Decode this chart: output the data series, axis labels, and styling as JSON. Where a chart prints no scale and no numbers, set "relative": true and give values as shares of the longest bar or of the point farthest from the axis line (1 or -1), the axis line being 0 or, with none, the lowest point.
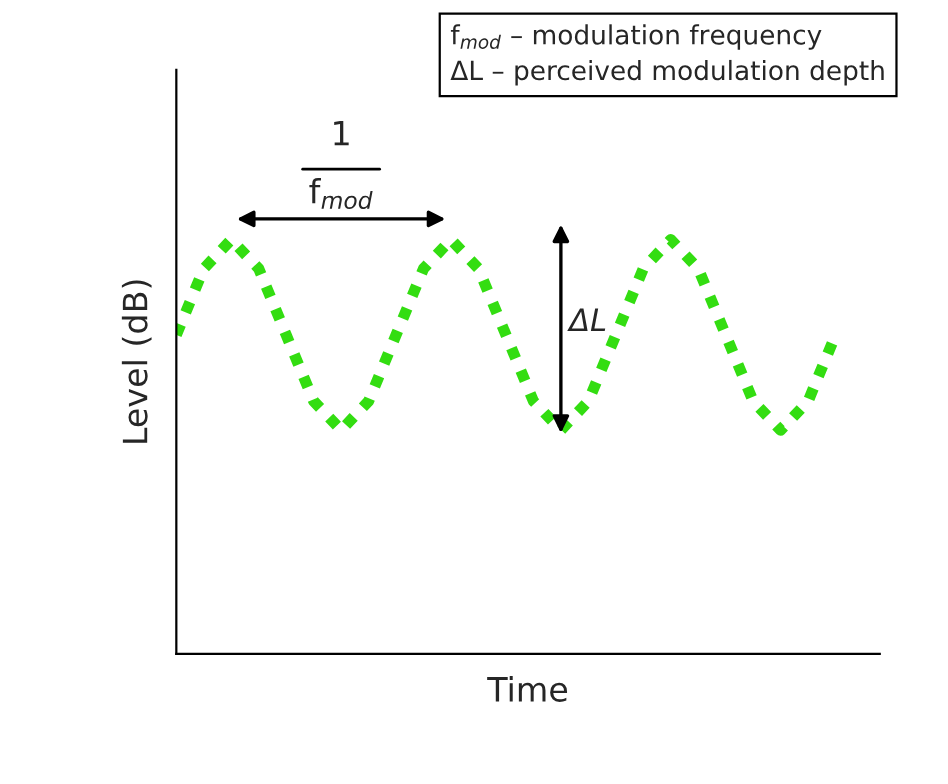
{
  "chart_data": {
    "type": "line",
    "relative": true,
    "xlabel": "Time",
    "ylabel": "Level (dB)",
    "categories": [
      null,
      null,
      null,
      null,
      null,
      null,
      null,
      null,
      null,
      null,
      null,
      null,
      null,
      null,
      null,
      null,
      null,
      null,
      null,
      null,
      null,
      null,
      null,
      null,
      null
    ],
    "series": [
      {
        "color": "#33dd11",
        "values": [
          0.77,
          0.93,
          1.0,
          0.93,
          0.77,
          0.61,
          0.54,
          0.61,
          0.77,
          0.93,
          1.0,
          0.93,
          0.77,
          0.61,
          0.54,
          0.61,
          0.77,
          0.93,
          1.0,
          0.93,
          0.77,
          0.61,
          0.54,
          0.61,
          0.77
        ]
      }
    ],
    "line_style": "dotted",
    "marker": "none",
    "legend": false,
    "tick_labels": false,
    "annotations": [
      "1",
      "f$_{mod}$",
      "ΔL",
      "f$_{mod}$ – modulation frequency",
      "ΔL – perceived modulation depth"
    ]
  }
}
